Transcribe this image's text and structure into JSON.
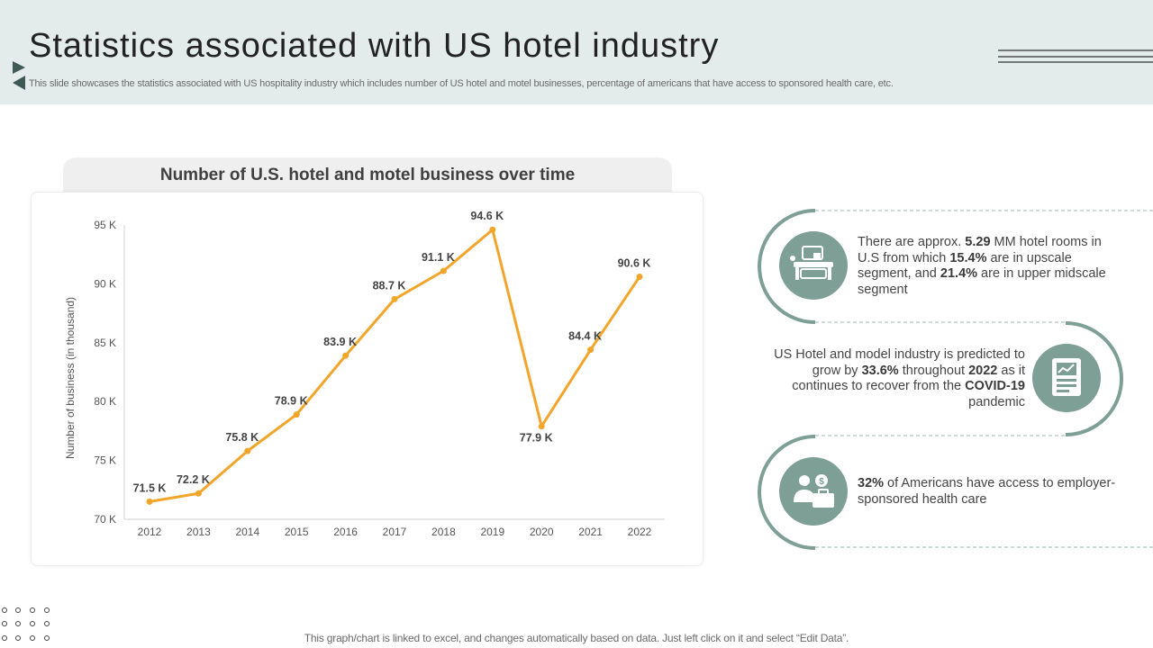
{
  "header": {
    "title": "Statistics associated with US hotel industry",
    "subtitle": "This slide showcases the statistics associated with US hospitality industry which includes number of US hotel and motel businesses, percentage of americans that have access to sponsored health care, etc."
  },
  "colors": {
    "accent": "#f2a52b",
    "teal": "#7e9f95",
    "header_bg": "#e3ebeb"
  },
  "chart_data": {
    "type": "line",
    "title": "Number of U.S. hotel and motel business over time",
    "xlabel": "",
    "ylabel": "Number of business (in thousand)",
    "categories": [
      "2012",
      "2013",
      "2014",
      "2015",
      "2016",
      "2017",
      "2018",
      "2019",
      "2020",
      "2021",
      "2022"
    ],
    "values": [
      71.5,
      72.2,
      75.8,
      78.9,
      83.9,
      88.7,
      91.1,
      94.6,
      77.9,
      84.4,
      90.6
    ],
    "labels": [
      "71.5 K",
      "72.2 K",
      "75.8 K",
      "78.9 K",
      "83.9 K",
      "88.7 K",
      "91.1 K",
      "94.6 K",
      "77.9 K",
      "84.4 K",
      "90.6 K"
    ],
    "yticks": [
      "70 K",
      "75 K",
      "80 K",
      "85 K",
      "90 K",
      "95 K"
    ],
    "ylim": [
      70,
      95
    ],
    "grid": false,
    "legend": "none"
  },
  "stats": {
    "s1": {
      "p1": "There are approx. ",
      "b1": "5.29",
      "p2": " MM hotel rooms in U.S from which ",
      "b2": "15.4%",
      "p3": " are in upscale segment, and ",
      "b3": "21.4%",
      "p4": " are in upper midscale segment"
    },
    "s2": {
      "p1": "US Hotel and model industry is predicted to grow by ",
      "b1": "33.6%",
      "p2": " throughout ",
      "b2": "2022",
      "p3": " as it continues to recover from the ",
      "b3": "COVID-19",
      "p4": " pandemic"
    },
    "s3": {
      "b1": "32%",
      "p1": " of Americans have access to employer-sponsored health care"
    }
  },
  "icons": {
    "i1": "hotel-room-icon",
    "i2": "growth-report-icon",
    "i3": "healthcare-benefit-icon"
  },
  "footer": {
    "note": "This graph/chart is linked to excel, and changes automatically based on data. Just left click on it and select “Edit Data”."
  }
}
